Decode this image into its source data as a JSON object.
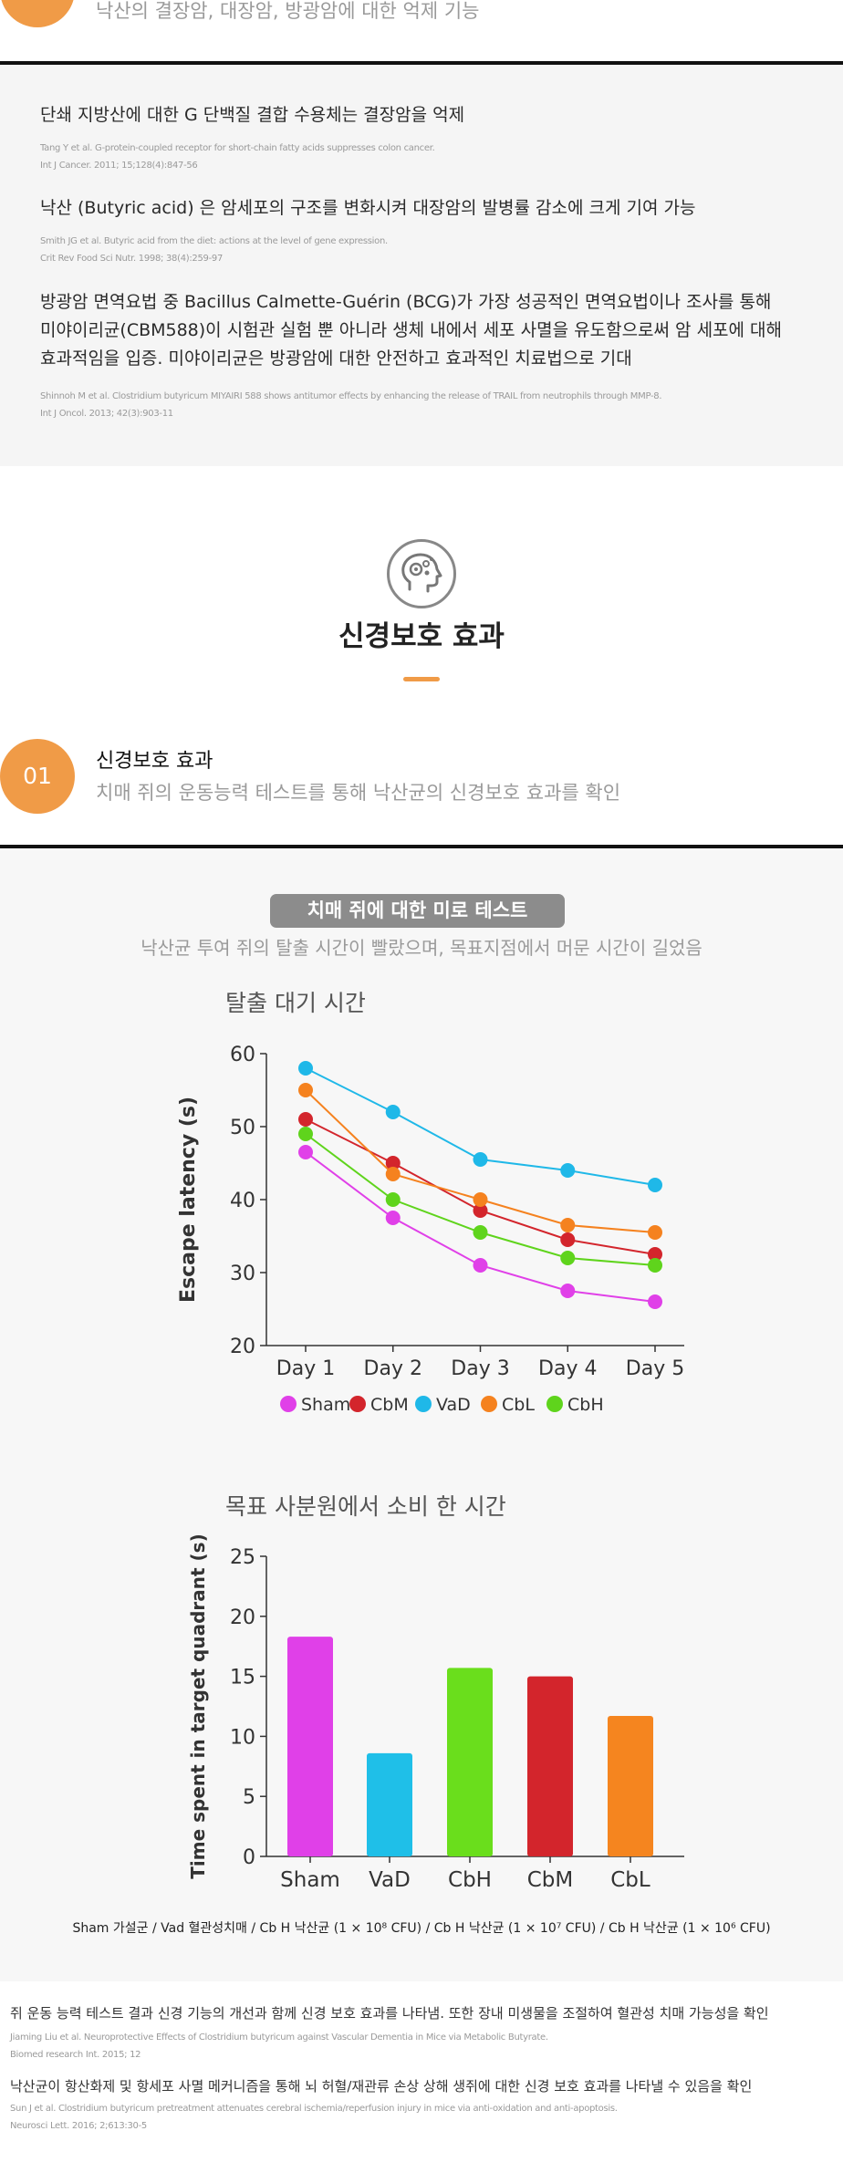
{
  "top_item": {
    "subtitle": "낙산의 결장암, 대장암, 방광암에 대한 억제 기능"
  },
  "references_1": [
    {
      "heading": "단쇄 지방산에 대한 G 단백질 결합 수용체는 결장암을 억제",
      "cite_1": "Tang Y et al. G-protein-coupled receptor for short-chain fatty acids suppresses colon cancer.",
      "cite_2": "Int J Cancer. 2011; 15;128(4):847-56"
    },
    {
      "heading": "낙산 (Butyric acid) 은 암세포의 구조를 변화시켜 대장암의 발병률 감소에 크게 기여 가능",
      "cite_1": "Smith JG et al. Butyric acid from the diet: actions at the level of gene expression.",
      "cite_2": "Crit Rev Food Sci Nutr. 1998; 38(4):259-97"
    },
    {
      "heading_1": "방광암 면역요법 중 Bacillus Calmette-Guérin (BCG)가 가장 성공적인 면역요법이나 조사를 통해",
      "heading_2": "미야이리균(CBM588)이 시험관 실험 뿐 아니라 생체 내에서 세포 사멸을 유도함으로써 암 세포에 대해",
      "heading_3": "효과적임을 입증. 미야이리균은 방광암에 대한 안전하고 효과적인 치료법으로 기대",
      "cite_1": "Shinnoh M et al. Clostridium butyricum MIYAIRI 588 shows antitumor effects by enhancing the release of TRAIL from neutrophils through MMP-8.",
      "cite_2": "Int J Oncol. 2013; 42(3):903-11"
    }
  ],
  "section": {
    "icon": "brain-head-icon",
    "title": "신경보호 효과"
  },
  "item_01": {
    "number": "01",
    "title": "신경보호 효과",
    "subtitle": "치매 쥐의 운동능력 테스트를 통해 낙산균의 신경보호 효과를 확인"
  },
  "experiment": {
    "badge": "치매 쥐에 대한 미로 테스트",
    "subtitle": "낙산균 투여 쥐의 탈출 시간이 빨랐으며, 목표지점에서 머문 시간이 길었음"
  },
  "chart_data": [
    {
      "type": "line",
      "title": "탈출 대기 시간",
      "xlabel": "",
      "ylabel": "Escape latency (s)",
      "categories": [
        "Day 1",
        "Day 2",
        "Day 3",
        "Day 4",
        "Day 5"
      ],
      "ylim": [
        20,
        60
      ],
      "yticks": [
        20,
        30,
        40,
        50,
        60
      ],
      "legend_position": "bottom",
      "series": [
        {
          "name": "Sham",
          "color": "#e040e8",
          "values": [
            46.5,
            37.5,
            31,
            27.5,
            26
          ]
        },
        {
          "name": "CbM",
          "color": "#d3252c",
          "values": [
            51,
            45,
            38.5,
            34.5,
            32.5
          ]
        },
        {
          "name": "VaD",
          "color": "#1fb8e8",
          "values": [
            58,
            52,
            45.5,
            44,
            42
          ]
        },
        {
          "name": "CbL",
          "color": "#f5821f",
          "values": [
            55,
            43.5,
            40,
            36.5,
            35.5
          ]
        },
        {
          "name": "CbH",
          "color": "#5fd41c",
          "values": [
            49,
            40,
            35.5,
            32,
            31
          ]
        }
      ]
    },
    {
      "type": "bar",
      "title": "목표 사분원에서 소비 한 시간",
      "xlabel": "",
      "ylabel": "Time spent in target quadrant (s)",
      "categories": [
        "Sham",
        "VaD",
        "CbH",
        "CbM",
        "CbL"
      ],
      "values": [
        18.3,
        8.6,
        15.7,
        15.0,
        11.7
      ],
      "colors": [
        "#e040e8",
        "#1fbfe8",
        "#6ade1c",
        "#d3252c",
        "#f5851f"
      ],
      "ylim": [
        0,
        25
      ],
      "yticks": [
        0,
        5,
        10,
        15,
        20,
        25
      ]
    }
  ],
  "footnote": {
    "text": "Sham 가설군 /  Vad 혈관성치매 / Cb H 낙산균 (1 × 10⁸ CFU) /  Cb H 낙산균 (1 × 10⁷ CFU) / Cb H 낙산균 (1 × 10⁶ CFU)"
  },
  "references_2": [
    {
      "heading": "쥐 운동 능력 테스트 결과 신경 기능의 개선과 함께 신경 보호 효과를 나타냄. 또한 장내 미생물을 조절하여 혈관성 치매 가능성을 확인",
      "cite_1": "Jiaming Liu et al. Neuroprotective Effects of Clostridium butyricum against Vascular Dementia in Mice via Metabolic Butyrate.",
      "cite_2": "Biomed research Int. 2015; 12"
    },
    {
      "heading": "낙산균이 항산화제 및 항세포 사멸 메커니즘을 통해 뇌 허혈/재관류 손상 상해 생쥐에 대한 신경 보호 효과를 나타낼 수 있음을 확인",
      "cite_1": "Sun J et al. Clostridium butyricum pretreatment attenuates cerebral ischemia/reperfusion injury in mice via anti-oxidation and anti-apoptosis.",
      "cite_2": "Neurosci Lett. 2016; 2;613:30-5"
    }
  ]
}
